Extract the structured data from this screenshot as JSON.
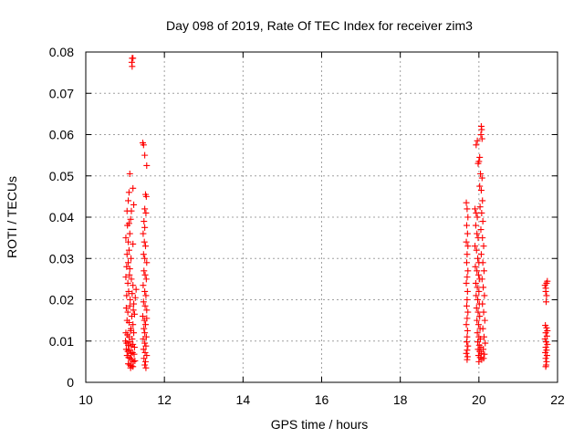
{
  "chart_data": {
    "type": "scatter",
    "title": "Day 098 of 2019, Rate Of TEC Index for receiver zim3",
    "xlabel": "GPS time / hours",
    "ylabel": "ROTI / TECUs",
    "xlim": [
      10,
      22
    ],
    "ylim": [
      0,
      0.08
    ],
    "xticks": [
      10,
      12,
      14,
      16,
      18,
      20,
      22
    ],
    "yticks": [
      0,
      0.01,
      0.02,
      0.03,
      0.04,
      0.05,
      0.06,
      0.07,
      0.08
    ],
    "xtick_labels": [
      "10",
      "12",
      "14",
      "16",
      "18",
      "20",
      "22"
    ],
    "ytick_labels": [
      "0",
      "0.01",
      "0.02",
      "0.03",
      "0.04",
      "0.05",
      "0.06",
      "0.07",
      "0.08"
    ],
    "grid": true,
    "marker": "+",
    "marker_color": "#ff0000",
    "series": [
      {
        "name": "ROTI",
        "points": [
          [
            11.18,
            0.0785
          ],
          [
            11.2,
            0.0785
          ],
          [
            11.17,
            0.0775
          ],
          [
            11.18,
            0.0765
          ],
          [
            11.05,
            0.0415
          ],
          [
            11.08,
            0.044
          ],
          [
            11.1,
            0.046
          ],
          [
            11.12,
            0.0505
          ],
          [
            11.2,
            0.047
          ],
          [
            11.22,
            0.043
          ],
          [
            11.06,
            0.038
          ],
          [
            11.1,
            0.0385
          ],
          [
            11.14,
            0.0395
          ],
          [
            11.02,
            0.035
          ],
          [
            11.08,
            0.034
          ],
          [
            11.12,
            0.036
          ],
          [
            11.16,
            0.0415
          ],
          [
            11.05,
            0.031
          ],
          [
            11.1,
            0.032
          ],
          [
            11.15,
            0.03
          ],
          [
            11.2,
            0.0335
          ],
          [
            11.04,
            0.028
          ],
          [
            11.08,
            0.029
          ],
          [
            11.12,
            0.0275
          ],
          [
            11.02,
            0.0255
          ],
          [
            11.07,
            0.024
          ],
          [
            11.11,
            0.026
          ],
          [
            11.16,
            0.025
          ],
          [
            11.2,
            0.0235
          ],
          [
            11.04,
            0.021
          ],
          [
            11.09,
            0.022
          ],
          [
            11.13,
            0.02
          ],
          [
            11.18,
            0.0215
          ],
          [
            11.22,
            0.019
          ],
          [
            11.03,
            0.018
          ],
          [
            11.07,
            0.017
          ],
          [
            11.12,
            0.0185
          ],
          [
            11.17,
            0.016
          ],
          [
            11.21,
            0.0175
          ],
          [
            11.05,
            0.015
          ],
          [
            11.1,
            0.0145
          ],
          [
            11.15,
            0.013
          ],
          [
            11.2,
            0.014
          ],
          [
            11.02,
            0.012
          ],
          [
            11.06,
            0.0115
          ],
          [
            11.1,
            0.011
          ],
          [
            11.14,
            0.0125
          ],
          [
            11.18,
            0.0105
          ],
          [
            11.22,
            0.012
          ],
          [
            11.01,
            0.01
          ],
          [
            11.04,
            0.0095
          ],
          [
            11.08,
            0.009
          ],
          [
            11.12,
            0.0098
          ],
          [
            11.16,
            0.0088
          ],
          [
            11.2,
            0.0092
          ],
          [
            11.24,
            0.0085
          ],
          [
            11.03,
            0.008
          ],
          [
            11.07,
            0.0075
          ],
          [
            11.11,
            0.0078
          ],
          [
            11.15,
            0.007
          ],
          [
            11.19,
            0.0072
          ],
          [
            11.23,
            0.0068
          ],
          [
            11.05,
            0.0065
          ],
          [
            11.09,
            0.006
          ],
          [
            11.13,
            0.0058
          ],
          [
            11.17,
            0.0055
          ],
          [
            11.21,
            0.005
          ],
          [
            11.25,
            0.0052
          ],
          [
            11.08,
            0.0045
          ],
          [
            11.12,
            0.0042
          ],
          [
            11.16,
            0.004
          ],
          [
            11.2,
            0.0038
          ],
          [
            11.14,
            0.0035
          ],
          [
            11.24,
            0.0165
          ],
          [
            11.26,
            0.0205
          ],
          [
            11.28,
            0.0225
          ],
          [
            11.45,
            0.058
          ],
          [
            11.47,
            0.0575
          ],
          [
            11.5,
            0.055
          ],
          [
            11.55,
            0.0525
          ],
          [
            11.52,
            0.0455
          ],
          [
            11.54,
            0.045
          ],
          [
            11.5,
            0.042
          ],
          [
            11.53,
            0.041
          ],
          [
            11.48,
            0.039
          ],
          [
            11.5,
            0.0375
          ],
          [
            11.46,
            0.036
          ],
          [
            11.49,
            0.034
          ],
          [
            11.52,
            0.033
          ],
          [
            11.47,
            0.031
          ],
          [
            11.5,
            0.03
          ],
          [
            11.55,
            0.029
          ],
          [
            11.48,
            0.027
          ],
          [
            11.51,
            0.026
          ],
          [
            11.54,
            0.025
          ],
          [
            11.46,
            0.0235
          ],
          [
            11.5,
            0.022
          ],
          [
            11.53,
            0.021
          ],
          [
            11.47,
            0.0195
          ],
          [
            11.51,
            0.0185
          ],
          [
            11.55,
            0.0175
          ],
          [
            11.45,
            0.016
          ],
          [
            11.49,
            0.015
          ],
          [
            11.52,
            0.014
          ],
          [
            11.48,
            0.013
          ],
          [
            11.5,
            0.012
          ],
          [
            11.54,
            0.011
          ],
          [
            11.46,
            0.0105
          ],
          [
            11.5,
            0.0095
          ],
          [
            11.53,
            0.0088
          ],
          [
            11.47,
            0.008
          ],
          [
            11.51,
            0.0072
          ],
          [
            11.55,
            0.0065
          ],
          [
            11.48,
            0.0058
          ],
          [
            11.52,
            0.005
          ],
          [
            11.5,
            0.0042
          ],
          [
            11.53,
            0.0035
          ],
          [
            11.55,
            0.0155
          ],
          [
            19.68,
            0.0435
          ],
          [
            19.7,
            0.042
          ],
          [
            19.72,
            0.04
          ],
          [
            19.69,
            0.038
          ],
          [
            19.71,
            0.036
          ],
          [
            19.68,
            0.034
          ],
          [
            19.72,
            0.033
          ],
          [
            19.7,
            0.031
          ],
          [
            19.69,
            0.029
          ],
          [
            19.72,
            0.027
          ],
          [
            19.7,
            0.0255
          ],
          [
            19.68,
            0.024
          ],
          [
            19.71,
            0.022
          ],
          [
            19.7,
            0.02
          ],
          [
            19.69,
            0.0185
          ],
          [
            19.72,
            0.017
          ],
          [
            19.7,
            0.0155
          ],
          [
            19.68,
            0.014
          ],
          [
            19.71,
            0.0125
          ],
          [
            19.7,
            0.011
          ],
          [
            19.69,
            0.0098
          ],
          [
            19.72,
            0.0088
          ],
          [
            19.7,
            0.0078
          ],
          [
            19.68,
            0.007
          ],
          [
            19.71,
            0.0062
          ],
          [
            19.7,
            0.0055
          ],
          [
            19.9,
            0.042
          ],
          [
            19.93,
            0.041
          ],
          [
            19.96,
            0.04
          ],
          [
            19.92,
            0.038
          ],
          [
            19.95,
            0.036
          ],
          [
            19.98,
            0.035
          ],
          [
            19.9,
            0.033
          ],
          [
            19.94,
            0.032
          ],
          [
            19.97,
            0.03
          ],
          [
            20.0,
            0.029
          ],
          [
            19.91,
            0.028
          ],
          [
            19.95,
            0.027
          ],
          [
            19.99,
            0.026
          ],
          [
            20.02,
            0.025
          ],
          [
            19.92,
            0.024
          ],
          [
            19.96,
            0.023
          ],
          [
            20.0,
            0.022
          ],
          [
            19.93,
            0.021
          ],
          [
            19.97,
            0.02
          ],
          [
            20.01,
            0.019
          ],
          [
            19.94,
            0.018
          ],
          [
            19.98,
            0.017
          ],
          [
            20.02,
            0.016
          ],
          [
            19.95,
            0.015
          ],
          [
            19.99,
            0.014
          ],
          [
            20.03,
            0.013
          ],
          [
            19.96,
            0.012
          ],
          [
            20.0,
            0.011
          ],
          [
            20.04,
            0.0105
          ],
          [
            19.97,
            0.0098
          ],
          [
            20.01,
            0.009
          ],
          [
            20.05,
            0.0085
          ],
          [
            19.98,
            0.008
          ],
          [
            20.02,
            0.0075
          ],
          [
            20.06,
            0.007
          ],
          [
            19.99,
            0.0065
          ],
          [
            20.03,
            0.006
          ],
          [
            20.07,
            0.0055
          ],
          [
            20.0,
            0.005
          ],
          [
            19.93,
            0.0575
          ],
          [
            19.96,
            0.0585
          ],
          [
            20.0,
            0.0535
          ],
          [
            19.98,
            0.053
          ],
          [
            20.02,
            0.0545
          ],
          [
            20.06,
            0.062
          ],
          [
            20.07,
            0.0612
          ],
          [
            20.05,
            0.06
          ],
          [
            20.08,
            0.059
          ],
          [
            20.04,
            0.0505
          ],
          [
            20.08,
            0.0495
          ],
          [
            20.02,
            0.0475
          ],
          [
            20.06,
            0.0465
          ],
          [
            20.09,
            0.044
          ],
          [
            20.03,
            0.0425
          ],
          [
            20.07,
            0.041
          ],
          [
            20.1,
            0.039
          ],
          [
            20.05,
            0.037
          ],
          [
            20.09,
            0.035
          ],
          [
            20.12,
            0.033
          ],
          [
            20.06,
            0.031
          ],
          [
            20.1,
            0.029
          ],
          [
            20.13,
            0.027
          ],
          [
            20.08,
            0.025
          ],
          [
            20.11,
            0.023
          ],
          [
            20.14,
            0.021
          ],
          [
            20.09,
            0.019
          ],
          [
            20.12,
            0.017
          ],
          [
            20.15,
            0.015
          ],
          [
            20.1,
            0.013
          ],
          [
            20.13,
            0.011
          ],
          [
            20.16,
            0.0095
          ],
          [
            20.11,
            0.008
          ],
          [
            20.14,
            0.0068
          ],
          [
            20.12,
            0.0058
          ],
          [
            21.68,
            0.0235
          ],
          [
            21.7,
            0.0228
          ],
          [
            21.72,
            0.024
          ],
          [
            21.74,
            0.0245
          ],
          [
            21.7,
            0.022
          ],
          [
            21.72,
            0.021
          ],
          [
            21.71,
            0.0195
          ],
          [
            21.69,
            0.0138
          ],
          [
            21.72,
            0.0132
          ],
          [
            21.74,
            0.0125
          ],
          [
            21.7,
            0.012
          ],
          [
            21.73,
            0.0112
          ],
          [
            21.68,
            0.0105
          ],
          [
            21.71,
            0.0098
          ],
          [
            21.74,
            0.0092
          ],
          [
            21.7,
            0.0085
          ],
          [
            21.72,
            0.0078
          ],
          [
            21.69,
            0.0072
          ],
          [
            21.73,
            0.0065
          ],
          [
            21.7,
            0.0058
          ],
          [
            21.72,
            0.005
          ],
          [
            21.71,
            0.0042
          ],
          [
            21.7,
            0.0038
          ]
        ]
      }
    ]
  }
}
